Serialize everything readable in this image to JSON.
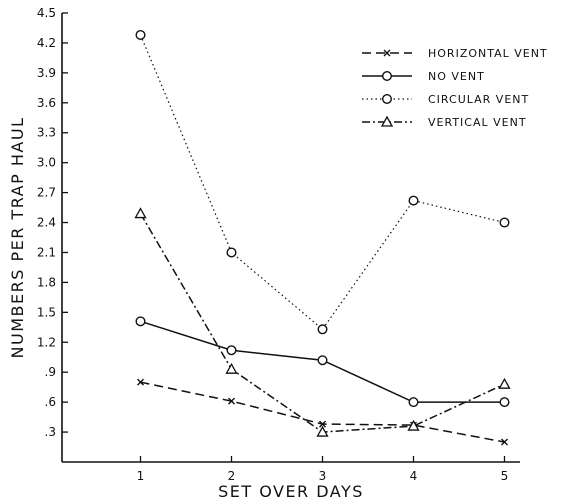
{
  "chart_data": {
    "type": "line",
    "title": "",
    "xlabel": "SET OVER DAYS",
    "ylabel": "NUMBERS PER TRAP HAUL",
    "x": [
      1,
      2,
      3,
      4,
      5
    ],
    "x_tick_labels": [
      "1",
      "2",
      "3",
      "4",
      "5"
    ],
    "ylim": [
      0,
      4.5
    ],
    "y_ticks": [
      0.3,
      0.6,
      0.9,
      1.2,
      1.5,
      1.8,
      2.1,
      2.4,
      2.7,
      3.0,
      3.3,
      3.6,
      3.9,
      4.2,
      4.5
    ],
    "y_tick_labels": [
      ".3",
      ".6",
      ".9",
      "1.2",
      "1.5",
      "1.8",
      "2.1",
      "2.4",
      "2.7",
      "3.0",
      "3.3",
      "3.6",
      "3.9",
      "4.2",
      "4.5"
    ],
    "grid": false,
    "legend_position": "top-right",
    "series": [
      {
        "name": "HORIZONTAL VENT",
        "values": [
          0.8,
          0.61,
          0.38,
          0.37,
          0.2
        ],
        "marker": "x",
        "line_style": "long-dash"
      },
      {
        "name": "NO VENT",
        "values": [
          1.41,
          1.12,
          1.02,
          0.6,
          0.6
        ],
        "marker": "circle",
        "line_style": "solid"
      },
      {
        "name": "CIRCULAR VENT",
        "values": [
          4.28,
          2.1,
          1.33,
          2.62,
          2.4
        ],
        "marker": "circle",
        "line_style": "dotted"
      },
      {
        "name": "VERTICAL VENT",
        "values": [
          2.49,
          0.93,
          0.3,
          0.36,
          0.78
        ],
        "marker": "triangle",
        "line_style": "dash-dot"
      }
    ]
  }
}
